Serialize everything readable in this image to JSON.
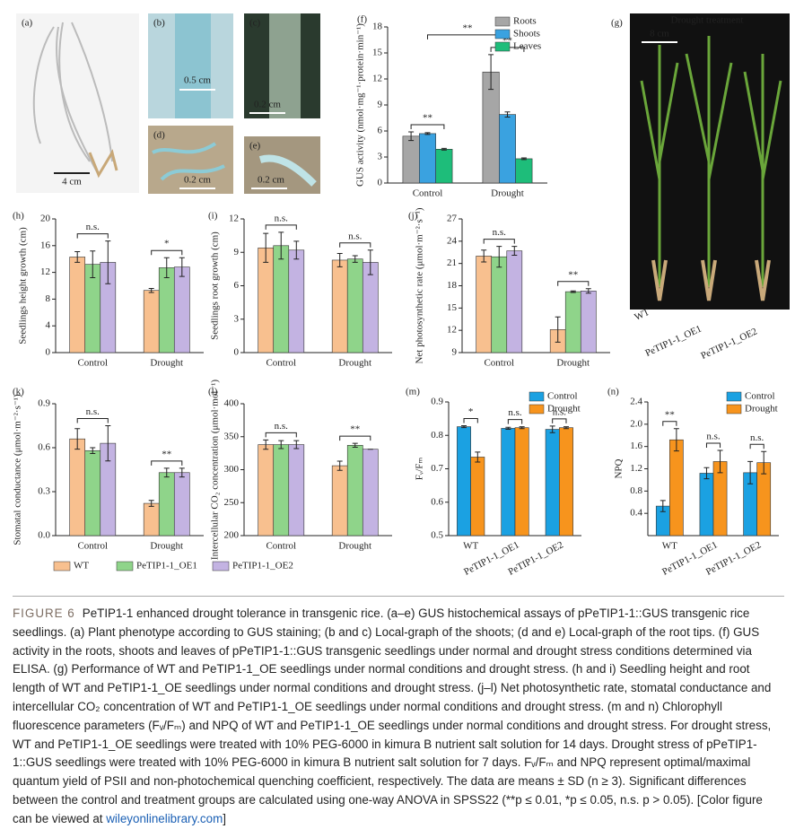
{
  "photos": [
    {
      "label": "(a)",
      "scale": "4 cm"
    },
    {
      "label": "(b)",
      "scale": "0.5 cm"
    },
    {
      "label": "(c)",
      "scale": "0.2 cm"
    },
    {
      "label": "(d)",
      "scale": "0.2 cm"
    },
    {
      "label": "(e)",
      "scale": "0.2 cm"
    },
    {
      "label": "(g)",
      "title": "Drought treatment",
      "scale": "8 cm",
      "plants": [
        "WT",
        "PeTIP1-1_OE1",
        "PeTIP1-1_OE2"
      ]
    }
  ],
  "legend": [
    {
      "name": "WT",
      "color": "#f8c08f"
    },
    {
      "name": "PeTIP1-1_OE1",
      "color": "#8fd48a"
    },
    {
      "name": "PeTIP1-1_OE2",
      "color": "#c3b3e2"
    }
  ],
  "chart_data": [
    {
      "type": "bar",
      "label": "(f)",
      "ylabel": "GUS activity (nmol·mg⁻¹·protein·min⁻¹)",
      "categories": [
        "Control",
        "Drought"
      ],
      "series": [
        {
          "name": "Roots",
          "color": "#a6a6a6",
          "values": [
            5.4,
            12.8
          ],
          "errors": [
            0.5,
            2.0
          ]
        },
        {
          "name": "Shoots",
          "color": "#3aa2e0",
          "values": [
            5.7,
            7.9
          ],
          "errors": [
            0.1,
            0.3
          ]
        },
        {
          "name": "Leaves",
          "color": "#1ebd7a",
          "values": [
            3.9,
            2.8
          ],
          "errors": [
            0.1,
            0.1
          ]
        }
      ],
      "annotations": [
        "**",
        "**",
        "**"
      ],
      "ylim": [
        0,
        18
      ],
      "yticks": [
        0,
        3,
        6,
        9,
        12,
        15,
        18
      ],
      "legend": "upper right"
    },
    {
      "type": "bar",
      "label": "(h)",
      "ylabel": "Seedlings height growth (cm)",
      "categories": [
        "Control",
        "Drought"
      ],
      "series": [
        {
          "color": "#f8c08f",
          "values": [
            14.3,
            9.3
          ],
          "errors": [
            0.8,
            0.3
          ]
        },
        {
          "color": "#8fd48a",
          "values": [
            13.2,
            12.7
          ],
          "errors": [
            2.0,
            1.5
          ]
        },
        {
          "color": "#c3b3e2",
          "values": [
            13.5,
            12.8
          ],
          "errors": [
            3.2,
            1.4
          ]
        }
      ],
      "annotations": [
        "n.s.",
        "*"
      ],
      "ylim": [
        0,
        20
      ],
      "yticks": [
        0,
        4,
        8,
        12,
        16,
        20
      ]
    },
    {
      "type": "bar",
      "label": "(i)",
      "ylabel": "Seedlings root growth (cm)",
      "categories": [
        "Control",
        "Drought"
      ],
      "series": [
        {
          "color": "#f8c08f",
          "values": [
            9.4,
            8.3
          ],
          "errors": [
            1.3,
            0.6
          ]
        },
        {
          "color": "#8fd48a",
          "values": [
            9.6,
            8.4
          ],
          "errors": [
            1.2,
            0.3
          ]
        },
        {
          "color": "#c3b3e2",
          "values": [
            9.2,
            8.1
          ],
          "errors": [
            0.8,
            1.1
          ]
        }
      ],
      "annotations": [
        "n.s.",
        "n.s."
      ],
      "ylim": [
        0,
        12
      ],
      "yticks": [
        0,
        3,
        6,
        9,
        12
      ]
    },
    {
      "type": "bar",
      "label": "(j)",
      "ylabel": "Net photosynthetic rate (μmol·m⁻²·s⁻¹)",
      "categories": [
        "Control",
        "Drought"
      ],
      "series": [
        {
          "color": "#f8c08f",
          "values": [
            22.0,
            12.1
          ],
          "errors": [
            0.8,
            1.7
          ]
        },
        {
          "color": "#8fd48a",
          "values": [
            21.9,
            17.2
          ],
          "errors": [
            1.4,
            0.1
          ]
        },
        {
          "color": "#c3b3e2",
          "values": [
            22.7,
            17.3
          ],
          "errors": [
            0.6,
            0.3
          ]
        }
      ],
      "annotations": [
        "n.s.",
        "**"
      ],
      "ylim": [
        9,
        27
      ],
      "yticks": [
        9,
        12,
        15,
        18,
        21,
        24,
        27
      ]
    },
    {
      "type": "bar",
      "label": "(k)",
      "ylabel": "Stomatal conductance (μmol·m⁻²·s⁻¹)",
      "categories": [
        "Control",
        "Drought"
      ],
      "series": [
        {
          "color": "#f8c08f",
          "values": [
            0.66,
            0.22
          ],
          "errors": [
            0.07,
            0.02
          ]
        },
        {
          "color": "#8fd48a",
          "values": [
            0.58,
            0.43
          ],
          "errors": [
            0.02,
            0.03
          ]
        },
        {
          "color": "#c3b3e2",
          "values": [
            0.63,
            0.43
          ],
          "errors": [
            0.12,
            0.03
          ]
        }
      ],
      "annotations": [
        "n.s.",
        "**"
      ],
      "ylim": [
        0,
        0.9
      ],
      "yticks": [
        {
          "value": 0,
          "label": "0.0"
        },
        0.3,
        0.6,
        0.9
      ]
    },
    {
      "type": "bar",
      "label": "(l)",
      "ylabel": "Intercellular CO₂ concentration (μmol·mol⁻¹)",
      "categories": [
        "Control",
        "Drought"
      ],
      "series": [
        {
          "color": "#f8c08f",
          "values": [
            338,
            306
          ],
          "errors": [
            7,
            7
          ]
        },
        {
          "color": "#8fd48a",
          "values": [
            338,
            337
          ],
          "errors": [
            6,
            3
          ]
        },
        {
          "color": "#c3b3e2",
          "values": [
            338,
            331
          ],
          "errors": [
            6,
            0
          ]
        }
      ],
      "annotations": [
        "n.s.",
        "**"
      ],
      "ylim": [
        200,
        400
      ],
      "yticks": [
        200,
        250,
        300,
        350,
        400
      ]
    },
    {
      "type": "bar",
      "label": "(m)",
      "ylabel": "Fᵥ/Fₘ",
      "categories": [
        "WT",
        "PeTIP1-1_OE1",
        "PeTIP1-1_OE2"
      ],
      "series": [
        {
          "name": "Control",
          "color": "#1ba1e2",
          "values": [
            0.826,
            0.821,
            0.818
          ],
          "errors": [
            0.003,
            0.003,
            0.01
          ]
        },
        {
          "name": "Drought",
          "color": "#f7941d",
          "values": [
            0.735,
            0.823,
            0.823
          ],
          "errors": [
            0.015,
            0.003,
            0.003
          ]
        }
      ],
      "annotations": [
        "*",
        "n.s.",
        "n.s."
      ],
      "ylim": [
        0.5,
        0.9
      ],
      "yticks": [
        0.5,
        0.6,
        0.7,
        0.8,
        0.9
      ],
      "legend": "upper right"
    },
    {
      "type": "bar",
      "label": "(n)",
      "ylabel": "NPQ",
      "categories": [
        "WT",
        "PeTIP1-1_OE1",
        "PeTIP1-1_OE2"
      ],
      "series": [
        {
          "name": "Control",
          "color": "#1ba1e2",
          "values": [
            0.53,
            1.12,
            1.13
          ],
          "errors": [
            0.1,
            0.1,
            0.2
          ]
        },
        {
          "name": "Drought",
          "color": "#f7941d",
          "values": [
            1.72,
            1.33,
            1.31
          ],
          "errors": [
            0.2,
            0.2,
            0.2
          ]
        }
      ],
      "annotations": [
        "**",
        "n.s.",
        "n.s."
      ],
      "ylim": [
        0,
        2.4
      ],
      "yticks": [
        0.4,
        0.8,
        1.2,
        1.6,
        {
          "value": 2,
          "label": "2.0"
        },
        2.4
      ],
      "legend": "upper right"
    }
  ],
  "caption": {
    "label": "FIGURE 6",
    "text": "PeTIP1-1 enhanced drought tolerance in transgenic rice. (a–e) GUS histochemical assays of pPeTIP1-1::GUS transgenic rice seedlings. (a) Plant phenotype according to GUS staining; (b and c) Local-graph of the shoots; (d and e) Local-graph of the root tips. (f) GUS activity in the roots, shoots and leaves of pPeTIP1-1::GUS transgenic seedlings under normal and drought stress conditions determined via ELISA. (g) Performance of WT and PeTIP1-1_OE seedlings under normal conditions and drought stress. (h and i) Seedling height and root length of WT and PeTIP1-1_OE seedlings under normal conditions and drought stress. (j–l) Net photosynthetic rate, stomatal conductance and intercellular CO₂ concentration of WT and PeTIP1-1_OE seedlings under normal conditions and drought stress. (m and n) Chlorophyll fluorescence parameters (Fᵥ/Fₘ) and NPQ of WT and PeTIP1-1_OE seedlings under normal conditions and drought stress. For drought stress, WT and PeTIP1-1_OE seedlings were treated with 10% PEG-6000 in kimura B nutrient salt solution for 14 days. Drought stress of pPeTIP1-1::GUS seedlings were treated with 10% PEG-6000 in kimura B nutrient salt solution for 7 days. Fᵥ/Fₘ and NPQ represent optimal/maximal quantum yield of PSII and non-photochemical quenching coefficient, respectively. The data are means ± SD (n ≥ 3). Significant differences between the control and treatment groups are calculated using one-way ANOVA in SPSS22 (**p ≤ 0.01, *p ≤ 0.05, n.s. p > 0.05). [Color figure can be viewed at",
    "link": "wileyonlinelibrary.com",
    "end": "]"
  }
}
